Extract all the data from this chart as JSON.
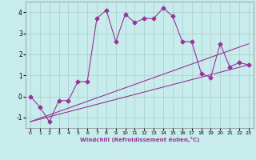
{
  "xlabel": "Windchill (Refroidissement éolien,°C)",
  "ylabel": "",
  "xlim": [
    -0.5,
    23.5
  ],
  "ylim": [
    -1.5,
    4.5
  ],
  "xticks": [
    0,
    1,
    2,
    3,
    4,
    5,
    6,
    7,
    8,
    9,
    10,
    11,
    12,
    13,
    14,
    15,
    16,
    17,
    18,
    19,
    20,
    21,
    22,
    23
  ],
  "yticks": [
    -1,
    0,
    1,
    2,
    3,
    4
  ],
  "bg_color": "#c8ecec",
  "line_color": "#993399",
  "grid_color": "#aacccc",
  "series1": {
    "x": [
      0,
      1,
      2,
      3,
      4,
      5,
      6,
      7,
      8,
      9,
      10,
      11,
      12,
      13,
      14,
      15,
      16,
      17,
      18,
      19,
      20,
      21,
      22,
      23
    ],
    "y": [
      0.0,
      -0.5,
      -1.2,
      -0.2,
      -0.2,
      0.7,
      0.7,
      3.7,
      4.1,
      2.6,
      3.9,
      3.5,
      3.7,
      3.7,
      4.2,
      3.8,
      2.6,
      2.6,
      1.1,
      0.9,
      2.5,
      1.4,
      1.6,
      1.5
    ]
  },
  "series2": {
    "x": [
      0,
      23
    ],
    "y": [
      -1.2,
      1.5
    ]
  },
  "series3": {
    "x": [
      0,
      23
    ],
    "y": [
      -1.2,
      2.5
    ]
  },
  "marker": "D",
  "marker_size": 2.5,
  "linewidth": 0.8
}
